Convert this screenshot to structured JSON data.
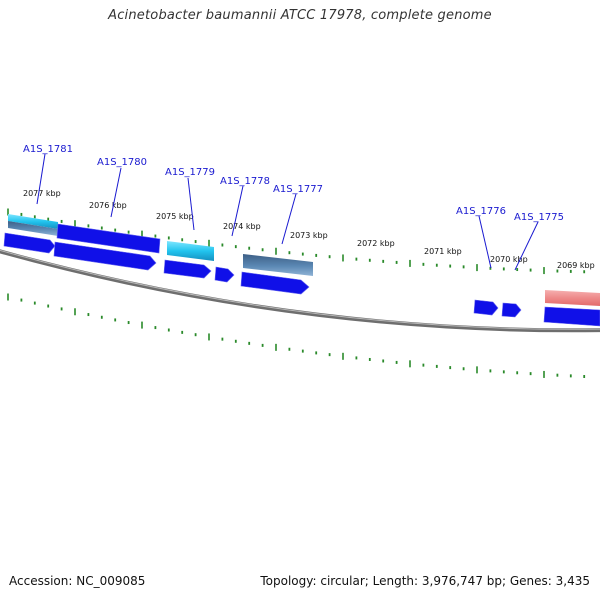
{
  "title": "Acinetobacter baumannii ATCC 17978, complete genome",
  "footer": {
    "accession": "Accession: NC_009085",
    "summary": "Topology: circular; Length: 3,976,747 bp; Genes: 3,435"
  },
  "colors": {
    "cds": "#1010e8",
    "cds_light": "#7a7af8",
    "tick": "#2a8a2a",
    "backbone": "#808080",
    "label": "#1a1ad0",
    "feature_cyan": "#22c4ee",
    "feature_steel": "#4f7ea8",
    "feature_red": "#ee8a8a"
  },
  "scale_labels": [
    "2077 kbp",
    "2076 kbp",
    "2075 kbp",
    "2074 kbp",
    "2073 kbp",
    "2072 kbp",
    "2071 kbp",
    "2070 kbp",
    "2069 kbp"
  ],
  "gene_labels": [
    "A1S_1781",
    "A1S_1780",
    "A1S_1779",
    "A1S_1778",
    "A1S_1777",
    "A1S_1776",
    "A1S_1775"
  ]
}
